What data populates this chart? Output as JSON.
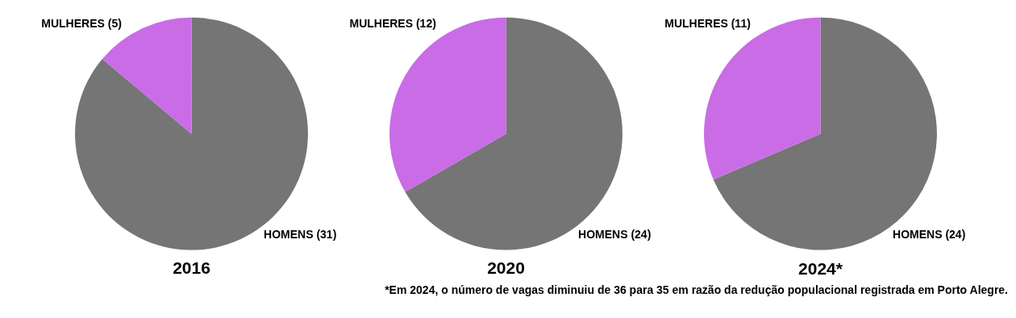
{
  "chart_data": [
    {
      "type": "pie",
      "title": "2016",
      "categories": [
        "HOMENS",
        "MULHERES"
      ],
      "values": [
        31,
        5
      ],
      "value_labels": [
        "(31)",
        "(5)"
      ],
      "colors": [
        "#757575",
        "#c96ce6"
      ],
      "legend": false
    },
    {
      "type": "pie",
      "title": "2020",
      "categories": [
        "HOMENS",
        "MULHERES"
      ],
      "values": [
        24,
        12
      ],
      "value_labels": [
        "(24)",
        "(12)"
      ],
      "colors": [
        "#757575",
        "#c96ce6"
      ],
      "legend": false
    },
    {
      "type": "pie",
      "title": "2024*",
      "categories": [
        "HOMENS",
        "MULHERES"
      ],
      "values": [
        24,
        11
      ],
      "value_labels": [
        "(24)",
        "(11)"
      ],
      "colors": [
        "#757575",
        "#c96ce6"
      ],
      "legend": false,
      "annotations": [
        "*Em 2024, o número de vagas diminuiu de 36 para 35 em razão da redução populacional registrada em Porto Alegre."
      ]
    }
  ]
}
